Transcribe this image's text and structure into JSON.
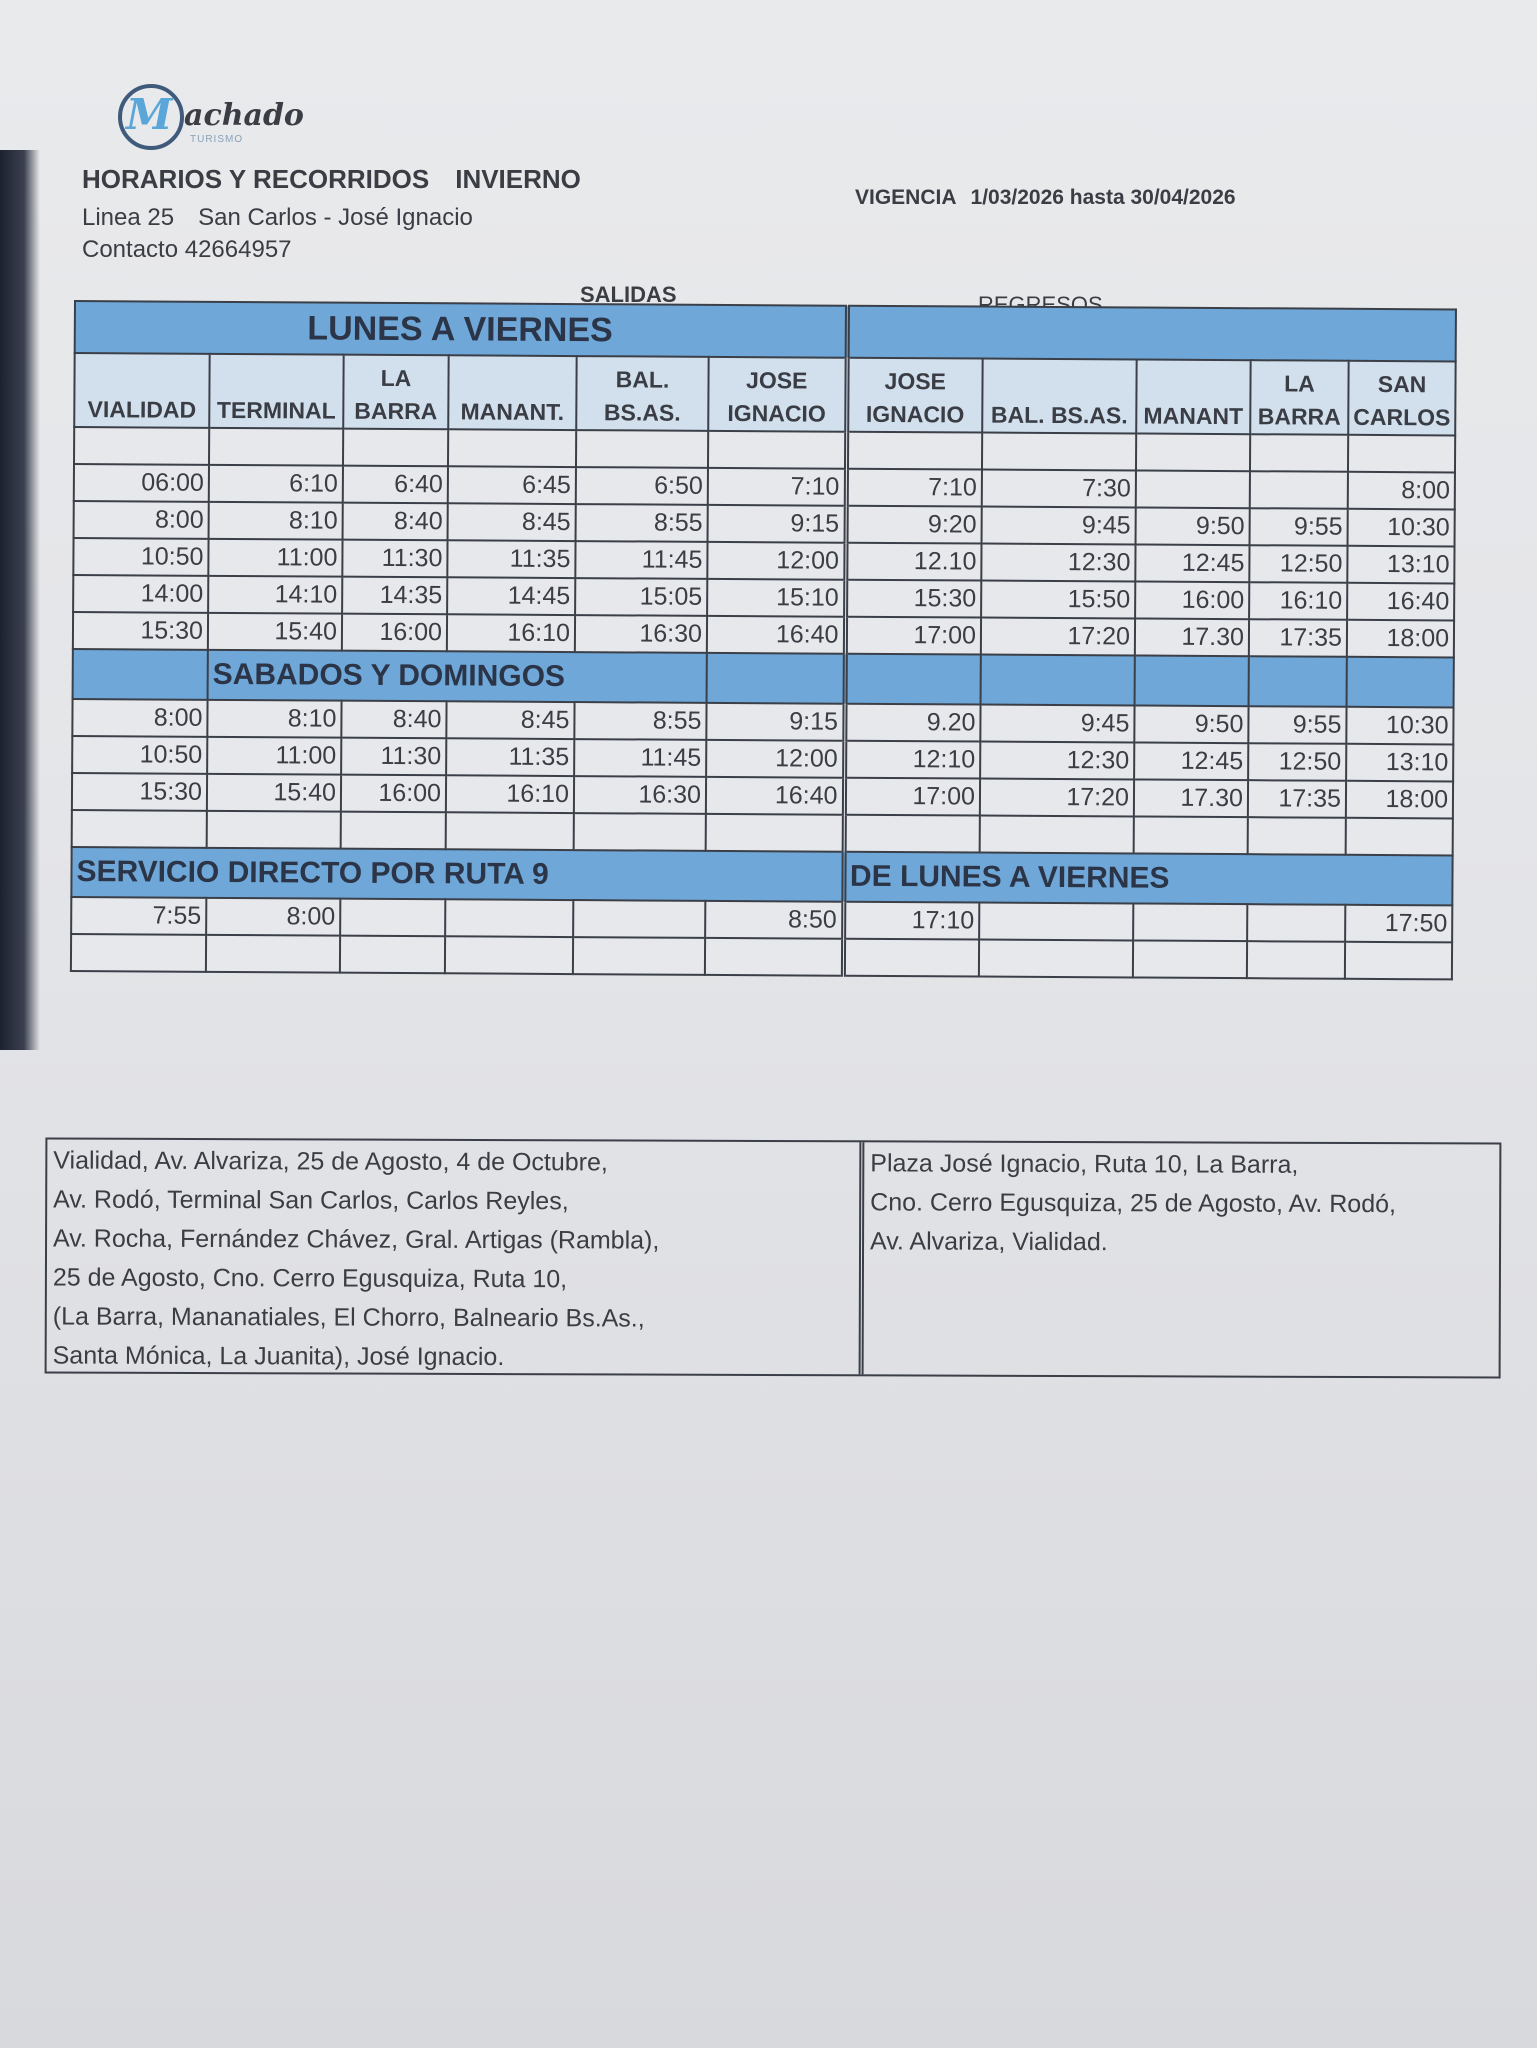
{
  "logo": {
    "brand": "Machado",
    "sub": "TURISMO",
    "color": "#5aa6d8"
  },
  "header": {
    "title": "HORARIOS Y RECORRIDOS",
    "season": "INVIERNO",
    "line": "Linea 25",
    "route": "San Carlos - José Ignacio",
    "contact": "Contacto 42664957",
    "vigencia_label": "VIGENCIA",
    "vigencia": "1/03/2026 hasta 30/04/2026"
  },
  "labels": {
    "salidas": "SALIDAS",
    "regresos": "REGRESOS"
  },
  "colors": {
    "band": "#6ea7d8",
    "header": "#d2e0ee"
  },
  "table": {
    "title": "LUNES A VIERNES",
    "columns": [
      "VIALIDAD",
      "TERMINAL",
      "LA BARRA",
      "MANANT.",
      "BAL. BS.AS.",
      "JOSE IGNACIO",
      "JOSE IGNACIO",
      "BAL. BS.AS.",
      "MANANT",
      "LA BARRA",
      "SAN CARLOS"
    ],
    "weekday_rows": [
      [
        "06:00",
        "6:10",
        "6:40",
        "6:45",
        "6:50",
        "7:10",
        "7:10",
        "7:30",
        "",
        "",
        "8:00"
      ],
      [
        "8:00",
        "8:10",
        "8:40",
        "8:45",
        "8:55",
        "9:15",
        "9:20",
        "9:45",
        "9:50",
        "9:55",
        "10:30"
      ],
      [
        "10:50",
        "11:00",
        "11:30",
        "11:35",
        "11:45",
        "12:00",
        "12.10",
        "12:30",
        "12:45",
        "12:50",
        "13:10"
      ],
      [
        "14:00",
        "14:10",
        "14:35",
        "14:45",
        "15:05",
        "15:10",
        "15:30",
        "15:50",
        "16:00",
        "16:10",
        "16:40"
      ],
      [
        "15:30",
        "15:40",
        "16:00",
        "16:10",
        "16:30",
        "16:40",
        "17:00",
        "17:20",
        "17.30",
        "17:35",
        "18:00"
      ]
    ],
    "weekend_title": "SABADOS  Y DOMINGOS",
    "weekend_rows": [
      [
        "8:00",
        "8:10",
        "8:40",
        "8:45",
        "8:55",
        "9:15",
        "9.20",
        "9:45",
        "9:50",
        "9:55",
        "10:30"
      ],
      [
        "10:50",
        "11:00",
        "11:30",
        "11:35",
        "11:45",
        "12:00",
        "12:10",
        "12:30",
        "12:45",
        "12:50",
        "13:10"
      ],
      [
        "15:30",
        "15:40",
        "16:00",
        "16:10",
        "16:30",
        "16:40",
        "17:00",
        "17:20",
        "17.30",
        "17:35",
        "18:00"
      ]
    ],
    "direct_title": "SERVICIO DIRECTO POR RUTA  9",
    "direct_subtitle": "DE LUNES A VIERNES",
    "direct_rows": [
      [
        "7:55",
        "8:00",
        "",
        "",
        "",
        "8:50",
        "17:10",
        "",
        "",
        "",
        "17:50"
      ]
    ]
  },
  "routes": {
    "outbound": [
      "Vialidad, Av. Alvariza, 25 de Agosto, 4 de Octubre,",
      "Av. Rodó, Terminal San Carlos, Carlos Reyles,",
      "Av. Rocha, Fernández Chávez, Gral. Artigas (Rambla),",
      "25 de Agosto, Cno. Cerro Egusquiza, Ruta 10,",
      "(La Barra, Mananatiales, El Chorro, Balneario Bs.As.,",
      "Santa Mónica, La Juanita), José Ignacio."
    ],
    "return": [
      "Plaza José Ignacio, Ruta 10, La Barra,",
      "Cno. Cerro Egusquiza, 25 de Agosto, Av. Rodó,",
      "Av. Alvariza, Vialidad."
    ]
  }
}
